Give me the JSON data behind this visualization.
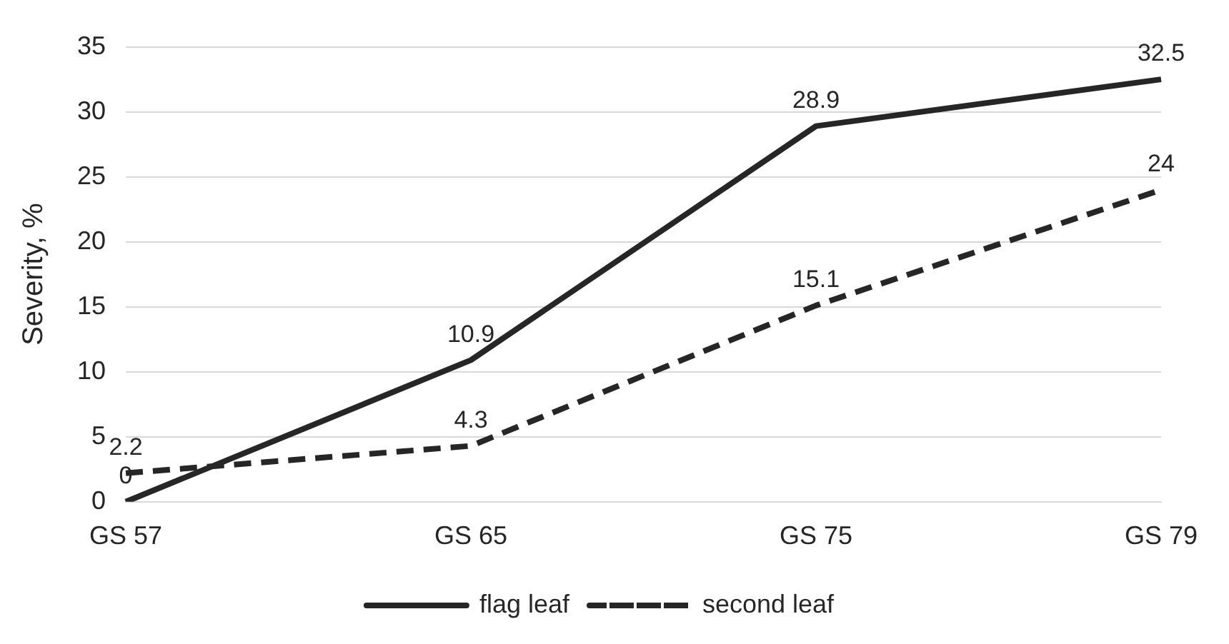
{
  "chart_data": {
    "type": "line",
    "ylabel": "Severity, %",
    "categories": [
      "GS 57",
      "GS 65",
      "GS 75",
      "GS 79"
    ],
    "series": [
      {
        "name": "flag leaf",
        "color": "#262626",
        "values": [
          0,
          10.9,
          28.9,
          32.5
        ],
        "line_style": "solid"
      },
      {
        "name": "second leaf",
        "color": "#262626",
        "values": [
          2.2,
          4.3,
          15.1,
          24
        ],
        "line_style": "dashed"
      }
    ],
    "ylim": [
      0,
      35
    ],
    "yticks": [
      0,
      5,
      10,
      15,
      20,
      25,
      30,
      35
    ],
    "grid": "y",
    "legend": "bottom",
    "data_labels": true,
    "marker": "none"
  }
}
